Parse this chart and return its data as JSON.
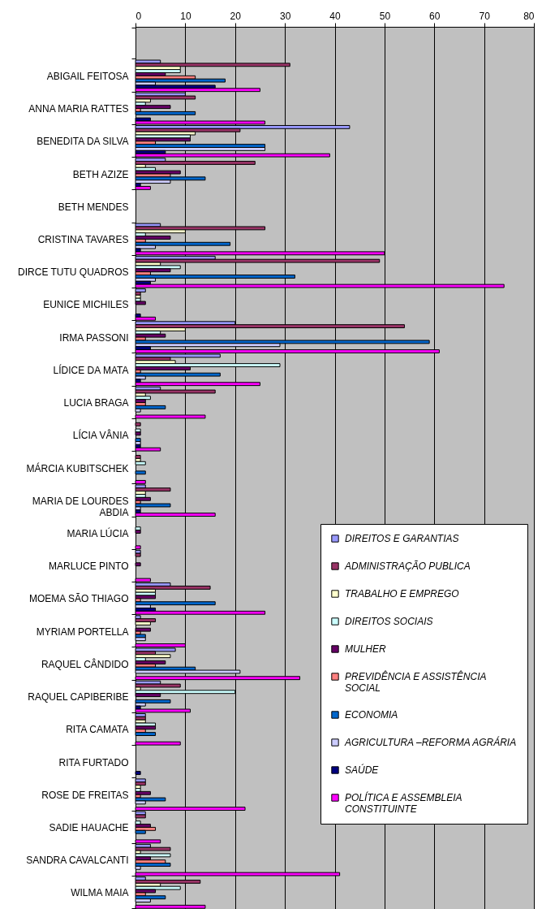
{
  "chart_data": {
    "type": "bar",
    "orientation": "horizontal",
    "categories": [
      null,
      "ABIGAIL FEITOSA",
      "ANNA MARIA RATTES",
      "BENEDITA DA SILVA",
      "BETH AZIZE",
      "BETH MENDES",
      "CRISTINA TAVARES",
      "DIRCE TUTU QUADROS",
      "EUNICE MICHILES",
      "IRMA PASSONI",
      "LÍDICE DA MATA",
      "LUCIA BRAGA",
      "LÍCIA VÂNIA",
      "MÁRCIA KUBITSCHEK",
      "MARIA DE LOURDES ABDIA",
      "MARIA LÚCIA",
      "MARLUCE PINTO",
      "MOEMA SÃO THIAGO",
      "MYRIAM PORTELLA",
      "RAQUEL CÂNDIDO",
      "RAQUEL CAPIBERIBE",
      "RITA CAMATA",
      "RITA FURTADO",
      "ROSE DE FREITAS",
      "SADIE HAUACHE",
      "SANDRA CAVALCANTI",
      "WILMA MAIA"
    ],
    "series": [
      {
        "name": "DIREITOS E GARANTIAS",
        "color": "#9999ff",
        "values": [
          null,
          5,
          10,
          43,
          6,
          0,
          5,
          16,
          2,
          20,
          17,
          5,
          0,
          0,
          2,
          0,
          1,
          7,
          1,
          8,
          5,
          2,
          0,
          2,
          2,
          3,
          2
        ]
      },
      {
        "name": "ADMINISTRAÇÃO PUBLICA",
        "color": "#993366",
        "values": [
          null,
          31,
          12,
          21,
          24,
          0,
          26,
          49,
          1,
          54,
          7,
          16,
          1,
          1,
          7,
          0,
          1,
          15,
          4,
          4,
          9,
          2,
          0,
          2,
          2,
          7,
          13
        ]
      },
      {
        "name": "TRABALHO E EMPREGO",
        "color": "#ffffcc",
        "values": [
          null,
          9,
          3,
          12,
          2,
          0,
          10,
          5,
          1,
          10,
          8,
          2,
          0,
          1,
          2,
          0,
          0,
          4,
          3,
          7,
          1,
          2,
          0,
          1,
          0,
          1,
          5
        ]
      },
      {
        "name": "DIREITOS SOCIAIS",
        "color": "#ccffff",
        "values": [
          null,
          9,
          2,
          11,
          4,
          0,
          2,
          9,
          1,
          5,
          29,
          3,
          1,
          2,
          2,
          1,
          0,
          4,
          0,
          2,
          20,
          4,
          0,
          1,
          1,
          7,
          9
        ]
      },
      {
        "name": "MULHER",
        "color": "#660066",
        "values": [
          null,
          6,
          7,
          11,
          9,
          0,
          7,
          7,
          2,
          6,
          11,
          2,
          1,
          0,
          3,
          1,
          1,
          4,
          3,
          6,
          5,
          4,
          0,
          3,
          3,
          3,
          4
        ]
      },
      {
        "name": "PREVIDÊNCIA E ASSISTÊNCIA SOCIAL",
        "color": "#ff8080",
        "values": [
          null,
          12,
          1,
          4,
          7,
          0,
          2,
          3,
          0,
          2,
          1,
          2,
          0,
          0,
          1,
          0,
          0,
          1,
          1,
          4,
          0,
          2,
          0,
          1,
          4,
          6,
          2
        ]
      },
      {
        "name": "ECONOMIA",
        "color": "#0066cc",
        "values": [
          null,
          18,
          12,
          26,
          14,
          0,
          19,
          32,
          0,
          59,
          17,
          6,
          1,
          2,
          7,
          0,
          0,
          16,
          2,
          12,
          7,
          4,
          0,
          6,
          2,
          7,
          6
        ]
      },
      {
        "name": "AGRICULTURA –REFORMA AGRÁRIA",
        "color": "#ccccff",
        "values": [
          null,
          4,
          0,
          26,
          7,
          0,
          4,
          4,
          0,
          29,
          2,
          1,
          1,
          0,
          1,
          0,
          0,
          3,
          2,
          21,
          2,
          0,
          0,
          2,
          0,
          1,
          3
        ]
      },
      {
        "name": "SAÚDE",
        "color": "#000080",
        "values": [
          null,
          16,
          3,
          6,
          1,
          0,
          1,
          3,
          1,
          3,
          1,
          0,
          1,
          0,
          1,
          0,
          0,
          4,
          0,
          0,
          1,
          0,
          1,
          0,
          0,
          0,
          0
        ]
      },
      {
        "name": "POLÍTICA E ASSEMBLEIA CONSTITUINTE",
        "color": "#ff00ff",
        "values": [
          null,
          25,
          26,
          39,
          3,
          0,
          50,
          74,
          4,
          61,
          25,
          14,
          5,
          2,
          16,
          1,
          3,
          26,
          10,
          33,
          11,
          9,
          0,
          22,
          5,
          41,
          14
        ]
      }
    ],
    "xlim": [
      0,
      80
    ],
    "xticks": [
      0,
      10,
      20,
      30,
      40,
      50,
      60,
      70,
      80
    ],
    "grid": "x",
    "legend": "bottom right"
  }
}
